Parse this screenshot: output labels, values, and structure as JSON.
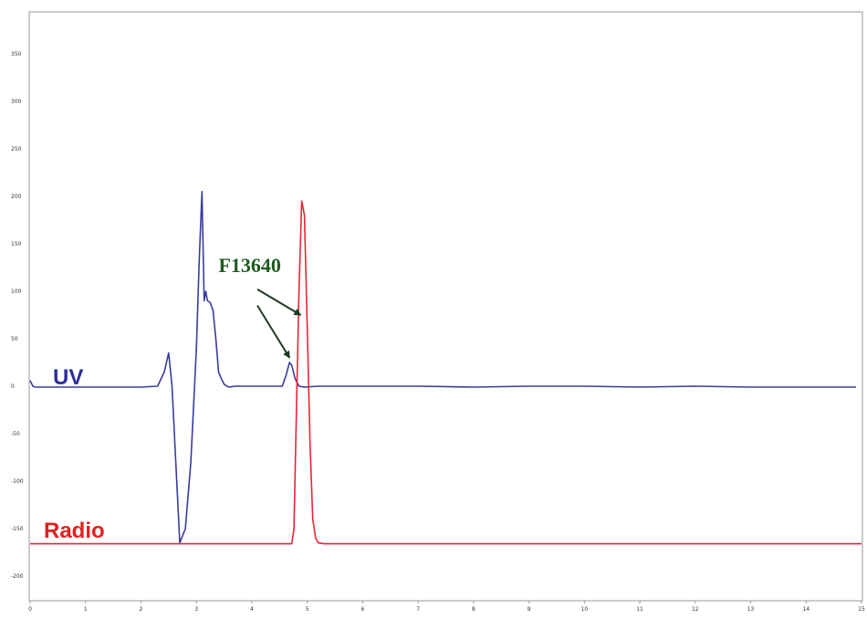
{
  "chart_data": {
    "type": "line",
    "title": "",
    "xlabel": "",
    "ylabel": "",
    "xlim": [
      0,
      15
    ],
    "ylim": [
      -220,
      390
    ],
    "x_ticks": [
      0,
      1,
      2,
      3,
      4,
      5,
      6,
      7,
      8,
      9,
      10,
      11,
      12,
      13,
      14,
      15
    ],
    "y_ticks": [
      350,
      300,
      250,
      200,
      150,
      100,
      50,
      0,
      -50,
      -100,
      -150,
      -200
    ],
    "grid": false,
    "series": [
      {
        "name": "UV",
        "color": "#3b3b9e",
        "label_color": "#2e2e9a",
        "x": [
          0,
          0.05,
          0.1,
          0.5,
          1.0,
          1.5,
          2.0,
          2.3,
          2.42,
          2.5,
          2.56,
          2.62,
          2.7,
          2.8,
          2.9,
          3.0,
          3.05,
          3.1,
          3.14,
          3.17,
          3.2,
          3.25,
          3.3,
          3.35,
          3.4,
          3.45,
          3.5,
          3.55,
          3.6,
          3.7,
          3.8,
          4.0,
          4.2,
          4.4,
          4.55,
          4.62,
          4.68,
          4.72,
          4.78,
          4.85,
          4.95,
          5.2,
          6.0,
          7.0,
          8.0,
          9.0,
          10.0,
          11.0,
          12.0,
          13.0,
          14.0,
          14.9
        ],
        "y": [
          6,
          0,
          -1,
          -1,
          -1,
          -1,
          -1,
          0,
          15,
          35,
          0,
          -70,
          -165,
          -150,
          -80,
          40,
          130,
          205,
          90,
          100,
          90,
          88,
          80,
          50,
          15,
          8,
          2,
          0,
          -1,
          0,
          0,
          0,
          0,
          0,
          0,
          12,
          25,
          22,
          8,
          0,
          -1,
          0,
          0,
          0,
          -1,
          0,
          0,
          -1,
          0,
          -1,
          -1,
          -1
        ]
      },
      {
        "name": "Radio",
        "color": "#e8253a",
        "label_color": "#e02020",
        "x": [
          0,
          1,
          2,
          3,
          4,
          4.5,
          4.72,
          4.76,
          4.8,
          4.85,
          4.9,
          4.95,
          5.0,
          5.05,
          5.1,
          5.15,
          5.2,
          5.3,
          5.5,
          6,
          7,
          8,
          9,
          10,
          11,
          12,
          13,
          14,
          15
        ],
        "y": [
          -166,
          -166,
          -166,
          -166,
          -166,
          -166,
          -166,
          -150,
          -40,
          100,
          195,
          180,
          60,
          -60,
          -140,
          -160,
          -165,
          -166,
          -166,
          -166,
          -166,
          -166,
          -166,
          -166,
          -166,
          -166,
          -166,
          -166,
          -166
        ]
      }
    ],
    "annotation": {
      "text": "F13640",
      "color": "#1f5d21",
      "text_pos": [
        3.4,
        120
      ],
      "arrows": [
        {
          "from": [
            4.1,
            102
          ],
          "to": [
            4.88,
            75
          ]
        },
        {
          "from": [
            4.1,
            85
          ],
          "to": [
            4.68,
            30
          ]
        }
      ]
    }
  }
}
